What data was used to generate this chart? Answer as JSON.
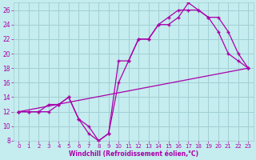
{
  "title": "",
  "xlabel": "Windchill (Refroidissement éolien,°C)",
  "ylabel": "",
  "bg_color": "#c5ecee",
  "grid_color": "#a0d0d4",
  "line_color": "#aa00aa",
  "xlim": [
    -0.5,
    23.5
  ],
  "ylim": [
    8,
    27
  ],
  "yticks": [
    8,
    10,
    12,
    14,
    16,
    18,
    20,
    22,
    24,
    26
  ],
  "xticks": [
    0,
    1,
    2,
    3,
    4,
    5,
    6,
    7,
    8,
    9,
    10,
    11,
    12,
    13,
    14,
    15,
    16,
    17,
    18,
    19,
    20,
    21,
    22,
    23
  ],
  "line1_x": [
    0,
    1,
    2,
    3,
    4,
    5,
    6,
    7,
    8,
    9,
    10,
    11,
    12,
    13,
    14,
    15,
    16,
    17,
    18,
    19,
    20,
    21,
    22,
    23
  ],
  "line1_y": [
    12,
    12,
    12,
    13,
    13,
    14,
    11,
    9,
    8,
    9,
    16,
    19,
    22,
    22,
    24,
    24,
    25,
    27,
    26,
    25,
    23,
    20,
    19,
    18
  ],
  "line2_x": [
    0,
    1,
    2,
    3,
    4,
    5,
    6,
    7,
    8,
    9,
    10,
    11,
    12,
    13,
    14,
    15,
    16,
    17,
    18,
    19,
    20,
    21,
    22,
    23
  ],
  "line2_y": [
    12,
    12,
    12,
    12,
    13,
    14,
    11,
    10,
    8,
    9,
    19,
    19,
    22,
    22,
    24,
    25,
    26,
    26,
    26,
    25,
    25,
    23,
    20,
    18
  ],
  "line3_x": [
    0,
    23
  ],
  "line3_y": [
    12,
    18
  ]
}
